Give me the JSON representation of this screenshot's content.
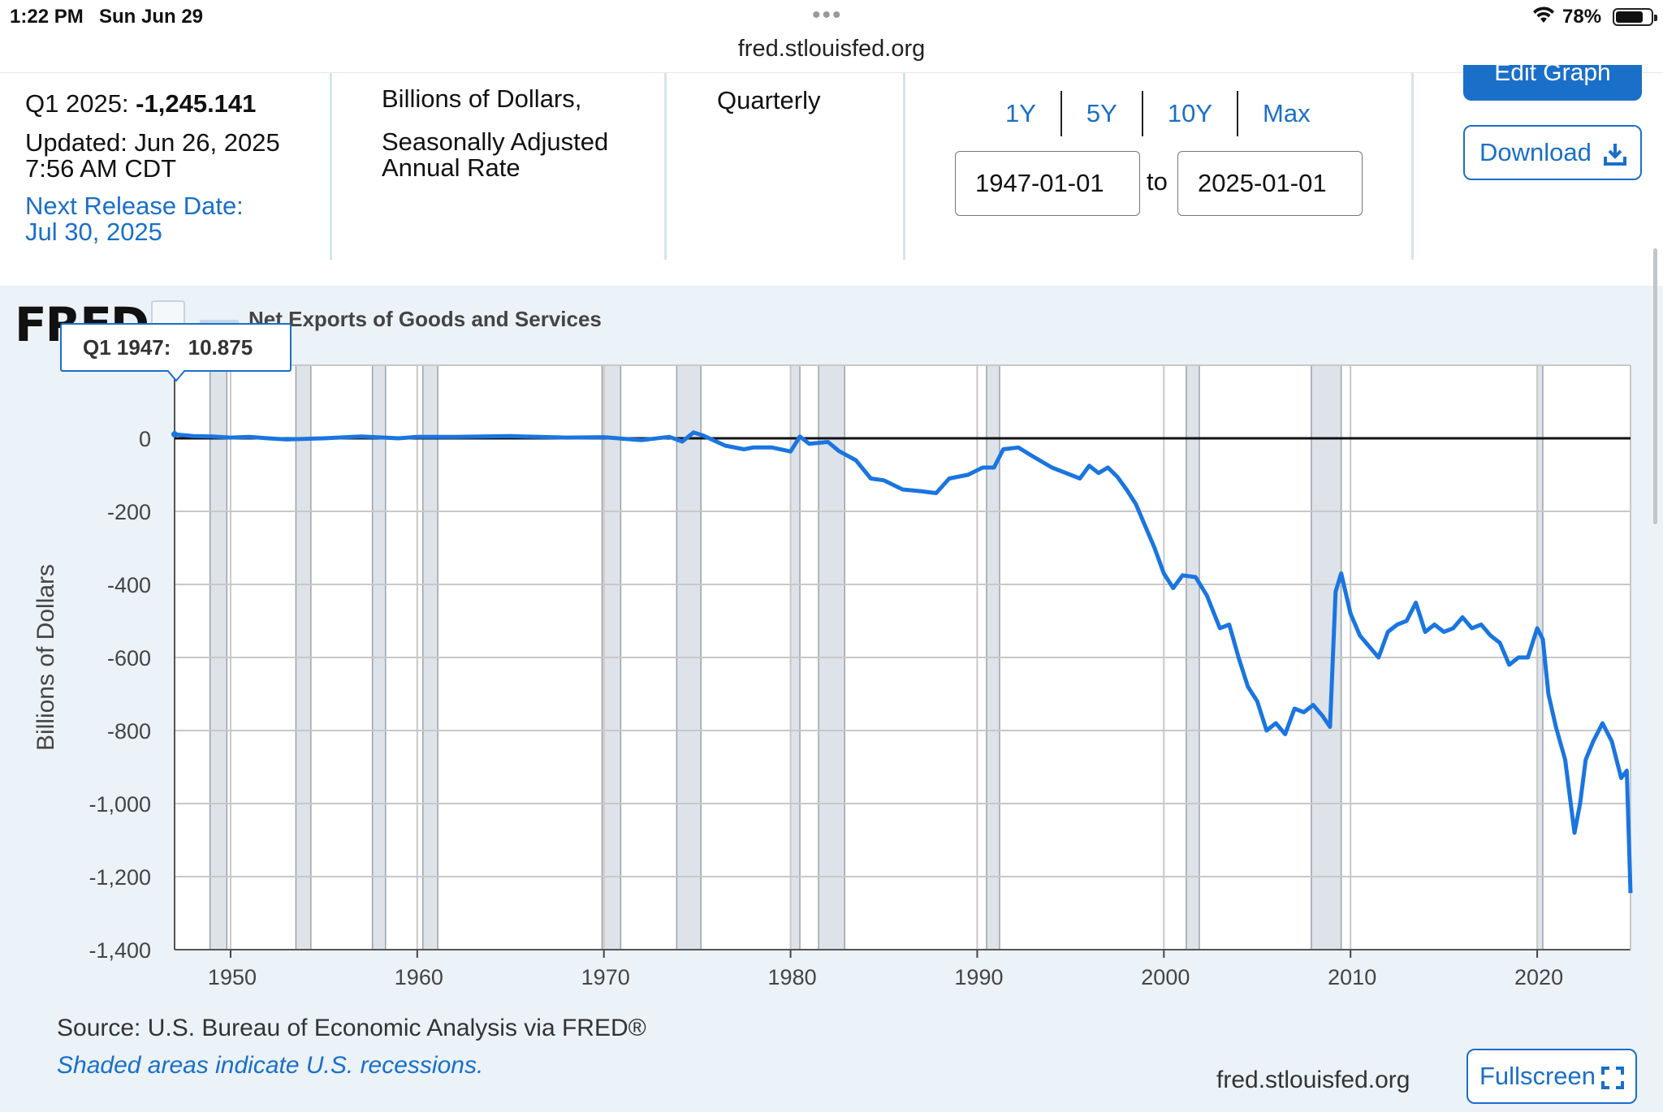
{
  "status_bar": {
    "time": "1:22 PM",
    "date": "Sun Jun 29",
    "battery_text": "78%",
    "battery_level": 0.78
  },
  "browser": {
    "url": "fred.stlouisfed.org"
  },
  "header": {
    "latest_obs_label": "Q1 2025:",
    "latest_obs_value": "-1,245.141",
    "updated_line1": "Updated: Jun 26, 2025",
    "updated_line2": "7:56 AM CDT",
    "next_release_line1": "Next Release Date:",
    "next_release_line2": "Jul 30, 2025",
    "units_line1": "Billions of Dollars,",
    "units_line2": "Seasonally Adjusted",
    "units_line3": "Annual Rate",
    "frequency": "Quarterly",
    "range_buttons": [
      "1Y",
      "5Y",
      "10Y",
      "Max"
    ],
    "start_date": "1947-01-01",
    "to_label": "to",
    "end_date": "2025-01-01",
    "edit_graph_label": "Edit Graph",
    "download_label": "Download"
  },
  "chart_panel": {
    "logo_text": "FRED",
    "series_title": "Net Exports of Goods and Services",
    "tooltip_period": "Q1 1947:",
    "tooltip_value": "10.875",
    "source_text": "Source: U.S. Bureau of Economic Analysis via FRED®",
    "shaded_note": "Shaded areas indicate U.S. recessions.",
    "site_text": "fred.stlouisfed.org",
    "fullscreen_label": "Fullscreen"
  },
  "colors": {
    "accent": "#1a6fc9",
    "series_line": "#1a75e0",
    "recession_shade": "#dde3e8",
    "panel_bg": "#ebf2f8"
  },
  "chart_data": {
    "type": "line",
    "title": "Net Exports of Goods and Services",
    "ylabel": "Billions of Dollars",
    "xlabel": "",
    "x_ticks": [
      "1950",
      "1960",
      "1970",
      "1980",
      "1990",
      "2000",
      "2010",
      "2020"
    ],
    "y_ticks": [
      "0",
      "-200",
      "-400",
      "-600",
      "-800",
      "-1,000",
      "-1,200",
      "-1,400"
    ],
    "ylim": [
      -1400,
      200
    ],
    "xlim": [
      1947.0,
      2025.0
    ],
    "grid": true,
    "recessions": [
      [
        1948.9,
        1949.8
      ],
      [
        1953.5,
        1954.3
      ],
      [
        1957.6,
        1958.3
      ],
      [
        1960.3,
        1961.1
      ],
      [
        1969.9,
        1970.9
      ],
      [
        1973.9,
        1975.2
      ],
      [
        1980.0,
        1980.5
      ],
      [
        1981.5,
        1982.9
      ],
      [
        1990.5,
        1991.2
      ],
      [
        2001.2,
        2001.9
      ],
      [
        2007.9,
        2009.5
      ],
      [
        2020.0,
        2020.3
      ]
    ],
    "series": [
      {
        "name": "Net Exports of Goods and Services",
        "points": [
          [
            1947.0,
            10.9
          ],
          [
            1948.0,
            6
          ],
          [
            1949.0,
            5
          ],
          [
            1950.0,
            2
          ],
          [
            1951.0,
            4
          ],
          [
            1952.0,
            0
          ],
          [
            1953.0,
            -3
          ],
          [
            1955.0,
            0
          ],
          [
            1957.0,
            5
          ],
          [
            1959.0,
            0
          ],
          [
            1960.0,
            4
          ],
          [
            1962.0,
            4
          ],
          [
            1965.0,
            6
          ],
          [
            1968.0,
            2
          ],
          [
            1970.0,
            3
          ],
          [
            1972.0,
            -5
          ],
          [
            1973.5,
            4
          ],
          [
            1974.2,
            -9
          ],
          [
            1974.8,
            16
          ],
          [
            1975.3,
            8
          ],
          [
            1976.5,
            -20
          ],
          [
            1977.5,
            -30
          ],
          [
            1978.0,
            -25
          ],
          [
            1979.0,
            -25
          ],
          [
            1980.0,
            -36
          ],
          [
            1980.5,
            5
          ],
          [
            1981.0,
            -15
          ],
          [
            1982.0,
            -10
          ],
          [
            1982.6,
            -35
          ],
          [
            1983.5,
            -60
          ],
          [
            1984.3,
            -110
          ],
          [
            1985.0,
            -115
          ],
          [
            1986.0,
            -140
          ],
          [
            1987.0,
            -145
          ],
          [
            1987.8,
            -150
          ],
          [
            1988.5,
            -110
          ],
          [
            1989.5,
            -100
          ],
          [
            1990.3,
            -80
          ],
          [
            1990.9,
            -80
          ],
          [
            1991.4,
            -30
          ],
          [
            1992.2,
            -25
          ],
          [
            1993.0,
            -50
          ],
          [
            1994.0,
            -80
          ],
          [
            1995.0,
            -100
          ],
          [
            1995.5,
            -110
          ],
          [
            1996.0,
            -75
          ],
          [
            1996.5,
            -95
          ],
          [
            1997.0,
            -80
          ],
          [
            1997.5,
            -105
          ],
          [
            1998.0,
            -140
          ],
          [
            1998.5,
            -180
          ],
          [
            1999.0,
            -240
          ],
          [
            1999.5,
            -300
          ],
          [
            2000.0,
            -370
          ],
          [
            2000.5,
            -410
          ],
          [
            2001.0,
            -375
          ],
          [
            2001.7,
            -380
          ],
          [
            2002.3,
            -430
          ],
          [
            2003.0,
            -520
          ],
          [
            2003.5,
            -510
          ],
          [
            2004.0,
            -600
          ],
          [
            2004.5,
            -680
          ],
          [
            2005.0,
            -720
          ],
          [
            2005.5,
            -800
          ],
          [
            2006.0,
            -780
          ],
          [
            2006.5,
            -810
          ],
          [
            2007.0,
            -740
          ],
          [
            2007.5,
            -750
          ],
          [
            2008.0,
            -730
          ],
          [
            2008.5,
            -760
          ],
          [
            2008.9,
            -790
          ],
          [
            2009.2,
            -420
          ],
          [
            2009.5,
            -370
          ],
          [
            2010.0,
            -480
          ],
          [
            2010.5,
            -540
          ],
          [
            2011.0,
            -570
          ],
          [
            2011.5,
            -600
          ],
          [
            2012.0,
            -530
          ],
          [
            2012.5,
            -510
          ],
          [
            2013.0,
            -500
          ],
          [
            2013.5,
            -450
          ],
          [
            2014.0,
            -530
          ],
          [
            2014.5,
            -510
          ],
          [
            2015.0,
            -530
          ],
          [
            2015.5,
            -520
          ],
          [
            2016.0,
            -490
          ],
          [
            2016.5,
            -520
          ],
          [
            2017.0,
            -510
          ],
          [
            2017.5,
            -540
          ],
          [
            2018.0,
            -560
          ],
          [
            2018.5,
            -620
          ],
          [
            2019.0,
            -600
          ],
          [
            2019.5,
            -600
          ],
          [
            2020.0,
            -520
          ],
          [
            2020.3,
            -550
          ],
          [
            2020.6,
            -700
          ],
          [
            2021.0,
            -790
          ],
          [
            2021.5,
            -880
          ],
          [
            2022.0,
            -1080
          ],
          [
            2022.3,
            -1000
          ],
          [
            2022.6,
            -880
          ],
          [
            2023.0,
            -830
          ],
          [
            2023.5,
            -780
          ],
          [
            2024.0,
            -830
          ],
          [
            2024.5,
            -930
          ],
          [
            2024.8,
            -910
          ],
          [
            2025.0,
            -1245.1
          ]
        ]
      }
    ]
  }
}
